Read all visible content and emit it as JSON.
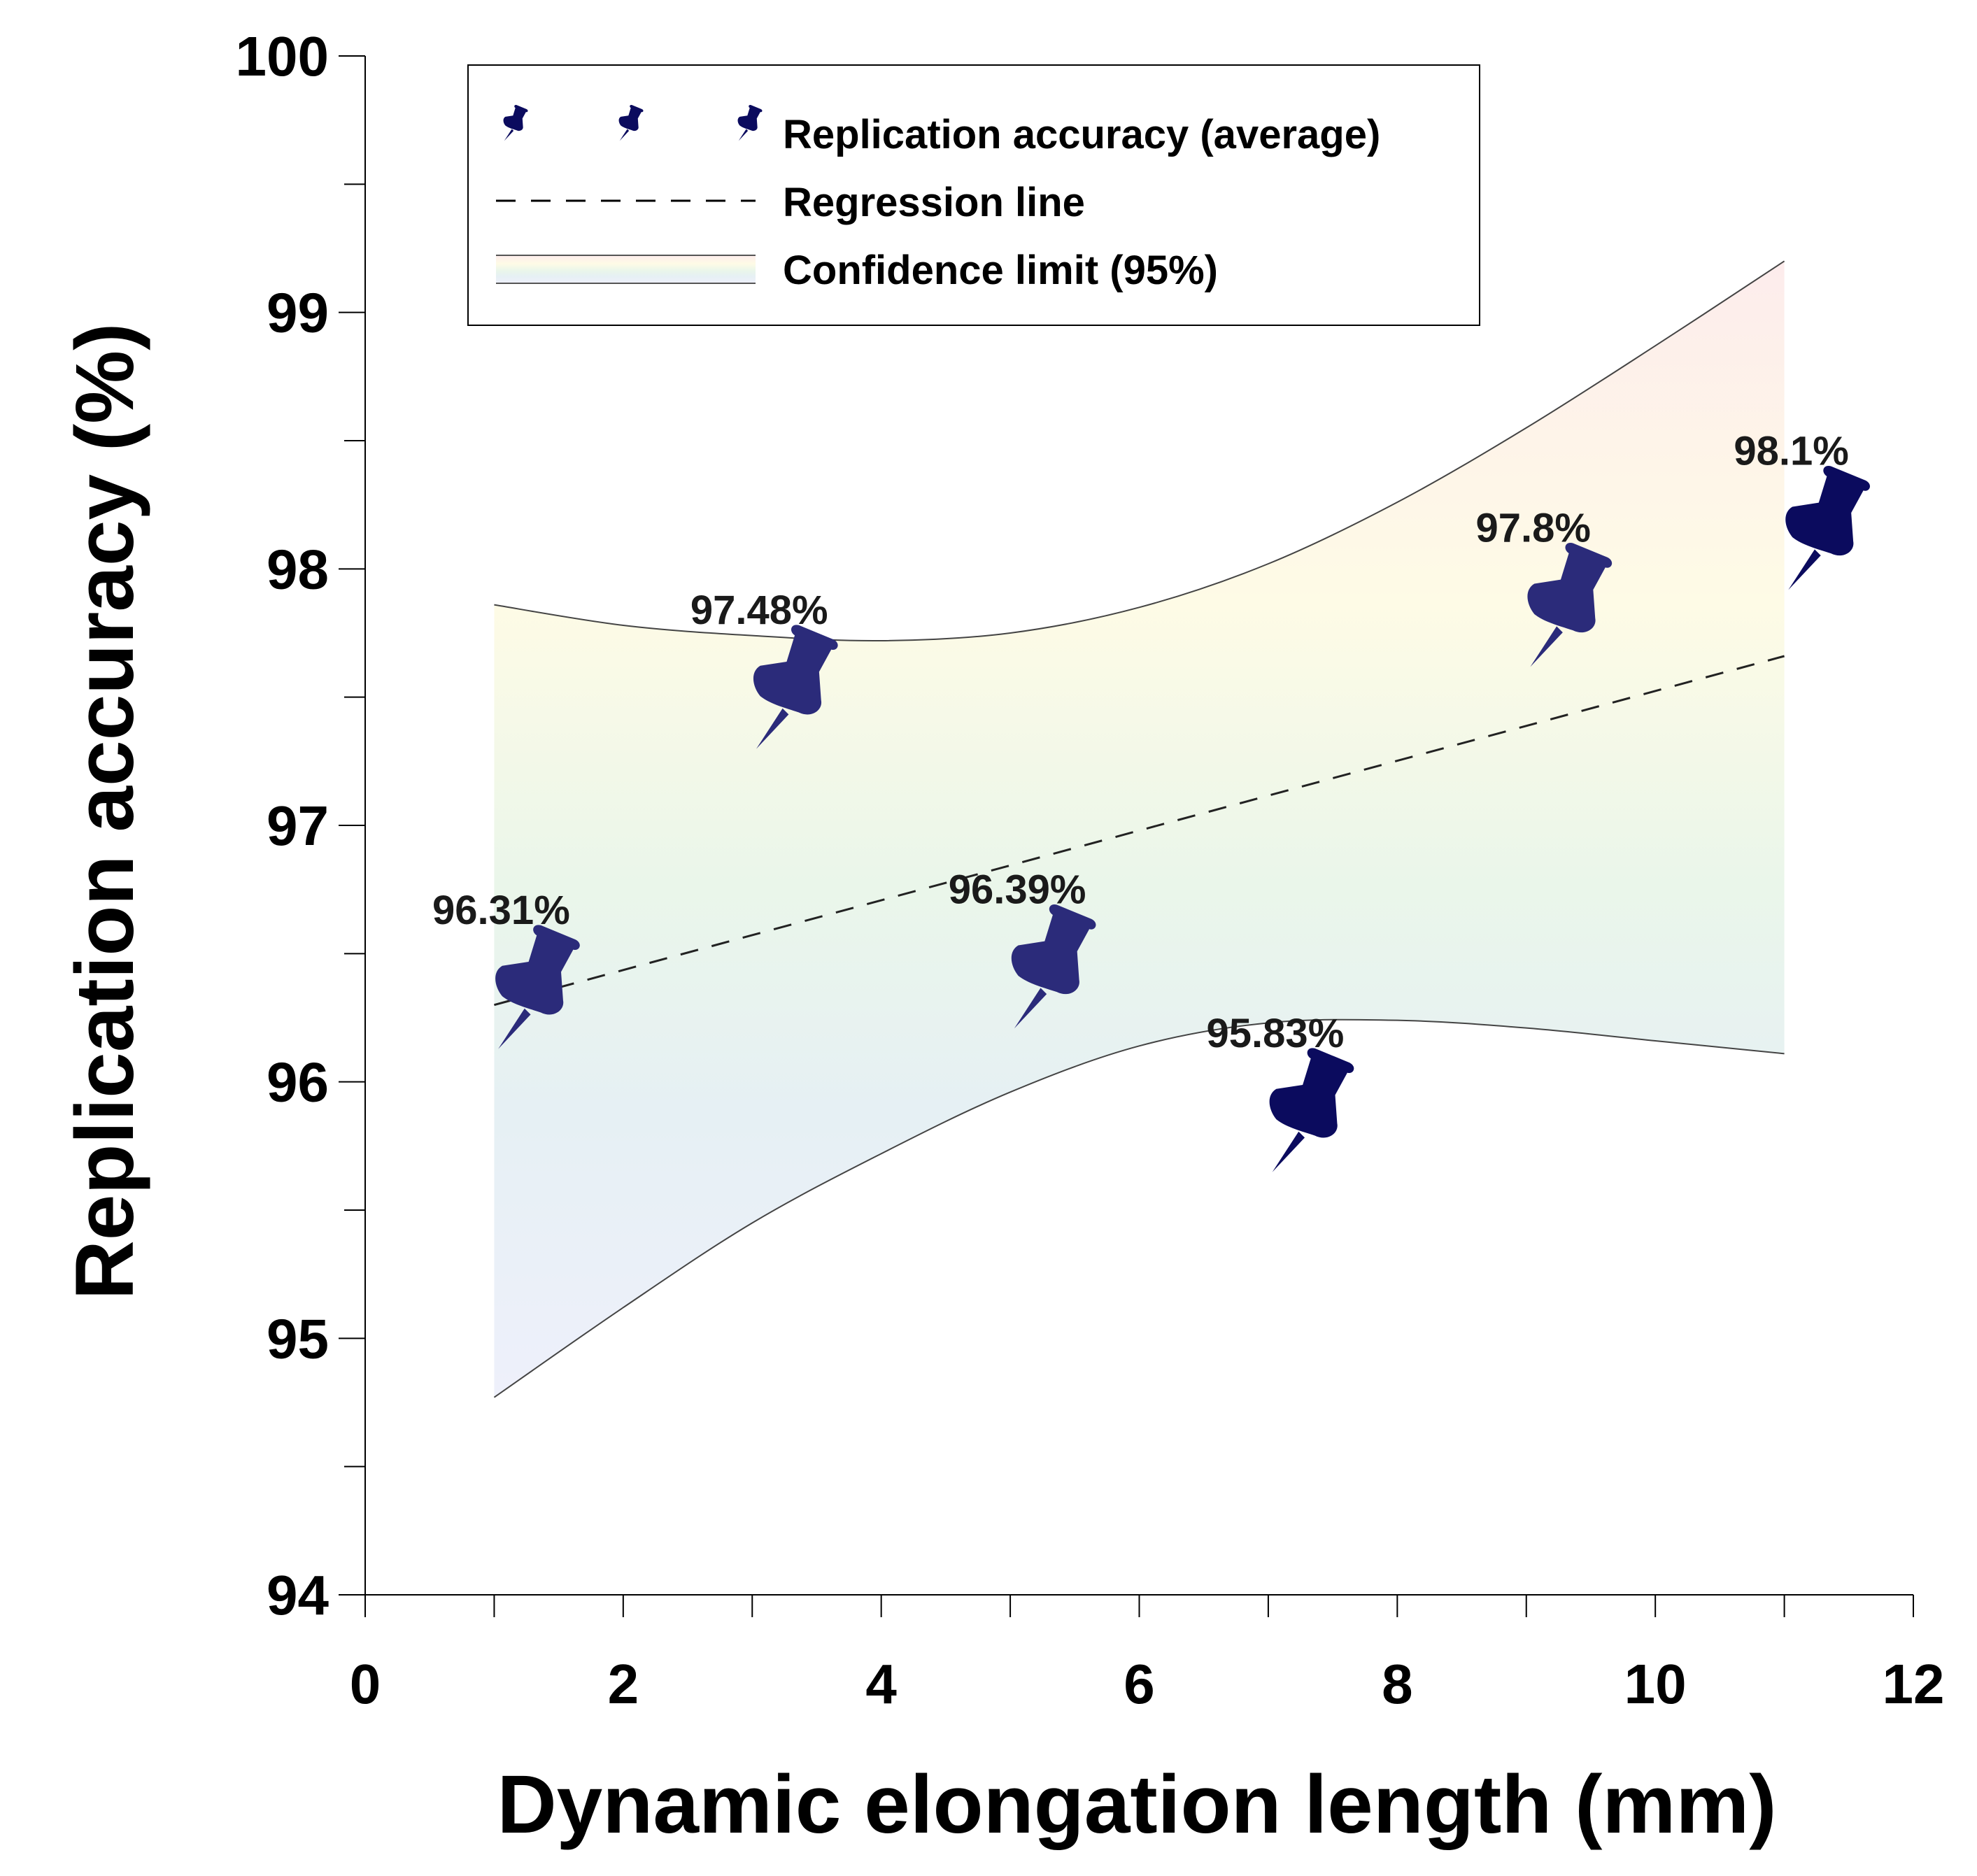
{
  "chart_data": {
    "type": "scatter",
    "title": "",
    "xlabel": "Dynamic elongation length (mm)",
    "ylabel": "Replication accuracy (%)",
    "xlim": [
      0,
      12
    ],
    "ylim": [
      94,
      100
    ],
    "x_ticks": [
      "0",
      "2",
      "4",
      "6",
      "8",
      "10",
      "12"
    ],
    "y_ticks": [
      "94",
      "95",
      "96",
      "97",
      "98",
      "99",
      "100"
    ],
    "x_minor_step": 1,
    "y_minor_step": 0.5,
    "series": [
      {
        "name": "Replication accuracy (average)",
        "marker": "pushpin",
        "x": [
          1,
          3,
          5,
          7,
          9,
          11
        ],
        "y": [
          96.31,
          97.48,
          96.39,
          95.83,
          97.8,
          98.1
        ],
        "labels": [
          "96.31%",
          "97.48%",
          "96.39%",
          "95.83%",
          "97.8%",
          "98.1%"
        ]
      }
    ],
    "regression": {
      "name": "Regression line",
      "x": [
        1,
        11
      ],
      "y": [
        96.3,
        97.66
      ]
    },
    "confidence": {
      "name": "Confidence limit (95%)",
      "x": [
        1,
        2,
        3,
        4,
        5,
        6,
        7,
        8,
        9,
        10,
        11
      ],
      "upper": [
        97.86,
        97.78,
        97.74,
        97.72,
        97.75,
        97.85,
        98.02,
        98.26,
        98.55,
        98.87,
        99.2
      ],
      "lower": [
        94.77,
        95.12,
        95.45,
        95.72,
        95.96,
        96.14,
        96.23,
        96.24,
        96.21,
        96.16,
        96.11
      ]
    },
    "legend_position": "top",
    "grid": false
  },
  "colors": {
    "pin_dark": "#0b0b5e",
    "pin_mid": "#2b2b7a",
    "pin_light": "#3d3d8c",
    "label_text": "#1a1a1a",
    "band_top": "#fdecec",
    "band_upper_mid": "#fefbe6",
    "band_mid": "#eaf6ea",
    "band_lower_mid": "#e6f0f4",
    "band_bottom": "#eef0fb"
  }
}
